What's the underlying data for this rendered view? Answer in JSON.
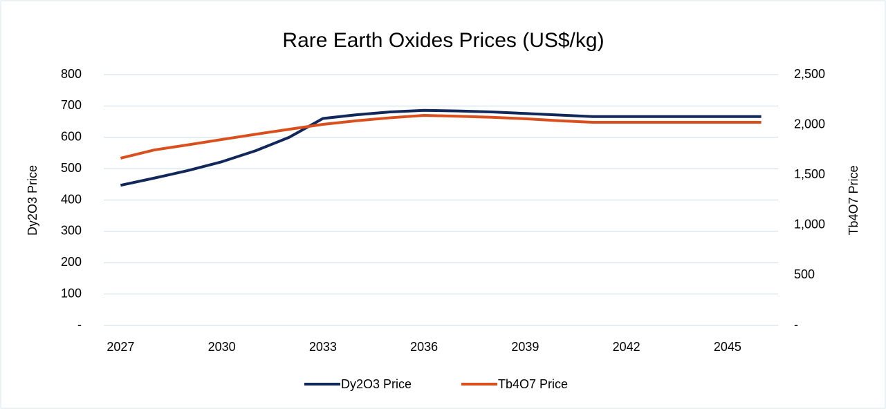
{
  "chart_data": {
    "type": "line",
    "title": "Rare Earth Oxides Prices (US$/kg)",
    "x": [
      2027,
      2028,
      2029,
      2030,
      2031,
      2032,
      2033,
      2034,
      2035,
      2036,
      2037,
      2038,
      2039,
      2040,
      2041,
      2042,
      2043,
      2044,
      2045,
      2046
    ],
    "xlim": [
      2026.5,
      2046.5
    ],
    "xticks": [
      2027,
      2030,
      2033,
      2036,
      2039,
      2042,
      2045
    ],
    "ylabel": "Dy2O3 Price",
    "y2label": "Tb4O7 Price",
    "ylim": [
      0,
      800
    ],
    "yticks": [
      {
        "value": 0,
        "label": "-"
      },
      100,
      200,
      300,
      400,
      500,
      600,
      700,
      800
    ],
    "y2lim": [
      0,
      2500
    ],
    "y2ticks": [
      {
        "value": 0,
        "label": "-"
      },
      500,
      {
        "value": 1000,
        "label": "1,000"
      },
      {
        "value": 1500,
        "label": "1,500"
      },
      {
        "value": 2000,
        "label": "2,000"
      },
      {
        "value": 2500,
        "label": "2,500"
      }
    ],
    "grid": true,
    "legend": "bottom",
    "series": [
      {
        "name": "Dy2O3 Price",
        "color": "#13285a",
        "values": [
          447,
          470,
          494,
          522,
          557,
          600,
          660,
          672,
          681,
          686,
          684,
          681,
          676,
          671,
          666,
          666,
          666,
          666,
          666,
          666
        ]
      },
      {
        "name": "Tb4O7 Price",
        "color": "#d9501e",
        "axis": "y2",
        "values": [
          1667,
          1749,
          1800,
          1853,
          1905,
          1955,
          2004,
          2040,
          2070,
          2094,
          2085,
          2075,
          2060,
          2040,
          2025,
          2025,
          2025,
          2025,
          2025,
          2025
        ]
      }
    ]
  }
}
